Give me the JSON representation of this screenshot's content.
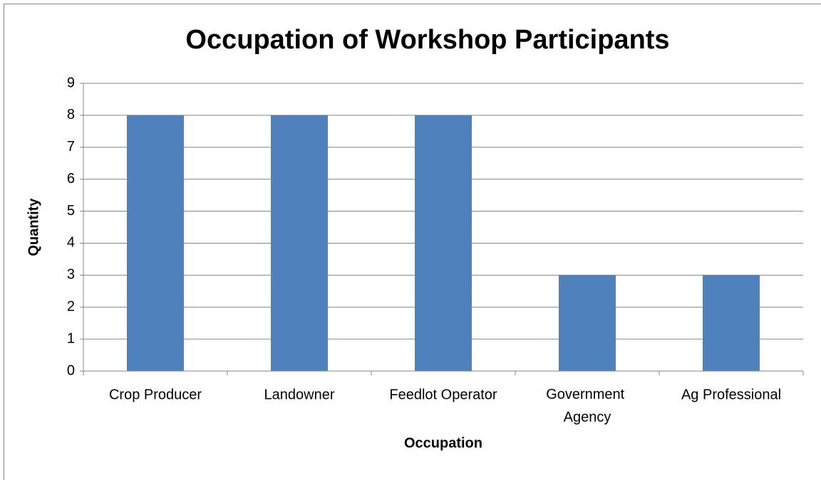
{
  "chart_data": {
    "type": "bar",
    "title": "Occupation of Workshop Participants",
    "x_label": "Occupation",
    "y_label": "Quantity",
    "categories": [
      "Crop Producer",
      "Landowner",
      "Feedlot Operator",
      "Government Agency",
      "Ag Professional"
    ],
    "values": [
      8,
      8,
      8,
      3,
      3
    ],
    "color": "#4f81bd",
    "ylim": [
      0,
      9
    ],
    "yticks": [
      0,
      1,
      2,
      3,
      4,
      5,
      6,
      7,
      8,
      9
    ],
    "grid": true
  }
}
